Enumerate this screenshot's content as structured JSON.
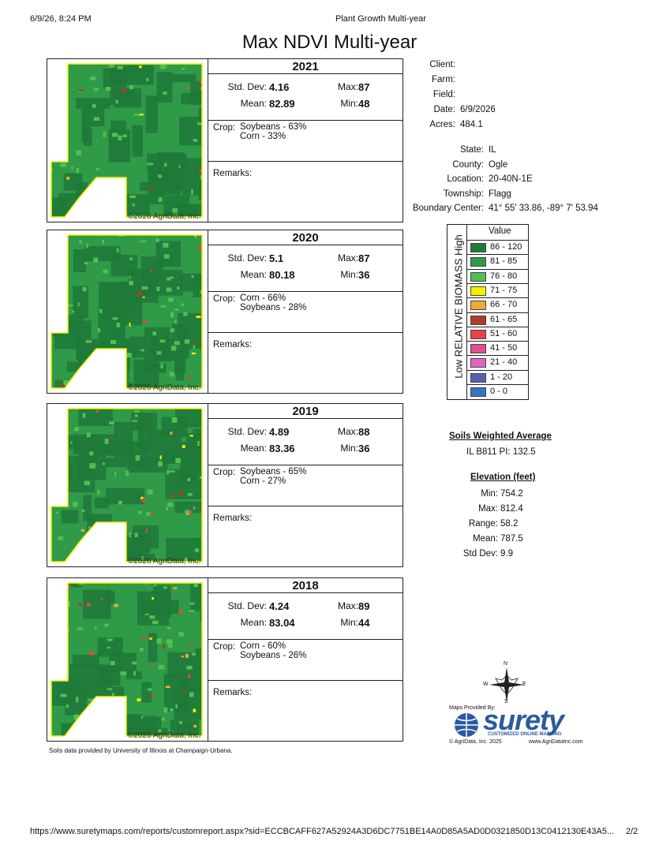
{
  "header": {
    "datetime": "6/9/26, 8:24 PM",
    "page_title": "Plant Growth Multi-year"
  },
  "title": "Max NDVI Multi-year",
  "panels": [
    {
      "year": "2021",
      "std_dev_label": "Std. Dev:",
      "std_dev": "4.16",
      "max_label": "Max:",
      "max": "87",
      "mean_label": "Mean:",
      "mean": "82.89",
      "min_label": "Min:",
      "min": "48",
      "crop_label": "Crop:",
      "crops": [
        "Soybeans - 63%",
        "Corn - 33%"
      ],
      "remarks_label": "Remarks:",
      "copyright": "©2026 AgriData, Inc."
    },
    {
      "year": "2020",
      "std_dev_label": "Std. Dev:",
      "std_dev": "5.1",
      "max_label": "Max:",
      "max": "87",
      "mean_label": "Mean:",
      "mean": "80.18",
      "min_label": "Min:",
      "min": "36",
      "crop_label": "Crop:",
      "crops": [
        "Corn - 66%",
        "Soybeans - 28%"
      ],
      "remarks_label": "Remarks:",
      "copyright": "©2026 AgriData, Inc."
    },
    {
      "year": "2019",
      "std_dev_label": "Std. Dev:",
      "std_dev": "4.89",
      "max_label": "Max:",
      "max": "88",
      "mean_label": "Mean:",
      "mean": "83.36",
      "min_label": "Min:",
      "min": "36",
      "crop_label": "Crop:",
      "crops": [
        "Soybeans - 65%",
        "Corn - 27%"
      ],
      "remarks_label": "Remarks:",
      "copyright": "©2026 AgriData, Inc."
    },
    {
      "year": "2018",
      "std_dev_label": "Std. Dev:",
      "std_dev": "4.24",
      "max_label": "Max:",
      "max": "89",
      "mean_label": "Mean:",
      "mean": "83.04",
      "min_label": "Min:",
      "min": "44",
      "crop_label": "Crop:",
      "crops": [
        "Corn - 60%",
        "Soybeans - 26%"
      ],
      "remarks_label": "Remarks:",
      "copyright": "©2026 AgriData, Inc."
    }
  ],
  "client_info": [
    {
      "label": "Client:"
    },
    {
      "label": "Farm:"
    },
    {
      "label": "Field:"
    },
    {
      "label": "Date:",
      "value": "6/9/2026"
    },
    {
      "label": "Acres:",
      "value": "484.1"
    }
  ],
  "location_info": [
    {
      "label": "State:",
      "value": "IL"
    },
    {
      "label": "County:",
      "value": "Ogle"
    },
    {
      "label": "Location:",
      "value": "20-40N-1E"
    },
    {
      "label": "Township:",
      "value": "Flagg"
    },
    {
      "label": "Boundary Center:",
      "value": "41° 55' 33.86, -89° 7' 53.94"
    }
  ],
  "legend": {
    "header": "Value",
    "axis_label": "Low RELATIVE BIOMASS High",
    "rows": [
      {
        "range": "86 - 120",
        "color": "#1f7a3a"
      },
      {
        "range": "81 - 85",
        "color": "#2f9a48"
      },
      {
        "range": "76 - 80",
        "color": "#52bf50"
      },
      {
        "range": "71 - 75",
        "color": "#f2f200"
      },
      {
        "range": "66 - 70",
        "color": "#f0a838"
      },
      {
        "range": "61 - 65",
        "color": "#b23a2c"
      },
      {
        "range": "51 - 60",
        "color": "#e84444"
      },
      {
        "range": "41 - 50",
        "color": "#e0508c"
      },
      {
        "range": "21 - 40",
        "color": "#e064c8"
      },
      {
        "range": "1 - 20",
        "color": "#5462b0"
      },
      {
        "range": "0 - 0",
        "color": "#3474c4"
      }
    ]
  },
  "soils": {
    "title": "Soils Weighted Average",
    "value": "IL B811 PI: 132.5"
  },
  "elevation": {
    "title": "Elevation (feet)",
    "rows": [
      {
        "label": "Min:",
        "value": "754.2"
      },
      {
        "label": "Max:",
        "value": "812.4"
      },
      {
        "label": "Range:",
        "value": "58.2"
      },
      {
        "label": "Mean:",
        "value": "787.5"
      },
      {
        "label": "Std Dev:",
        "value": "9.9"
      }
    ]
  },
  "compass": {
    "n": "N",
    "e": "E",
    "s": "S",
    "w": "W"
  },
  "logo": {
    "provided_by": "Maps Provided By:",
    "brand": "surety",
    "tagline": "CUSTOMIZED ONLINE MAPPING",
    "copyright": "© AgriData, Inc. 2025",
    "website": "www.AgriDataInc.com"
  },
  "soils_note": "Soils data provided by University of Illinois at Champaign-Urbana.",
  "footer": {
    "url": "https://www.suretymaps.com/reports/customreport.aspx?sid=ECCBCAFF627A52924A3D6DC7751BE14A0D85A5AD0D0321850D13C0412130E43A5...",
    "page": "2/2"
  }
}
